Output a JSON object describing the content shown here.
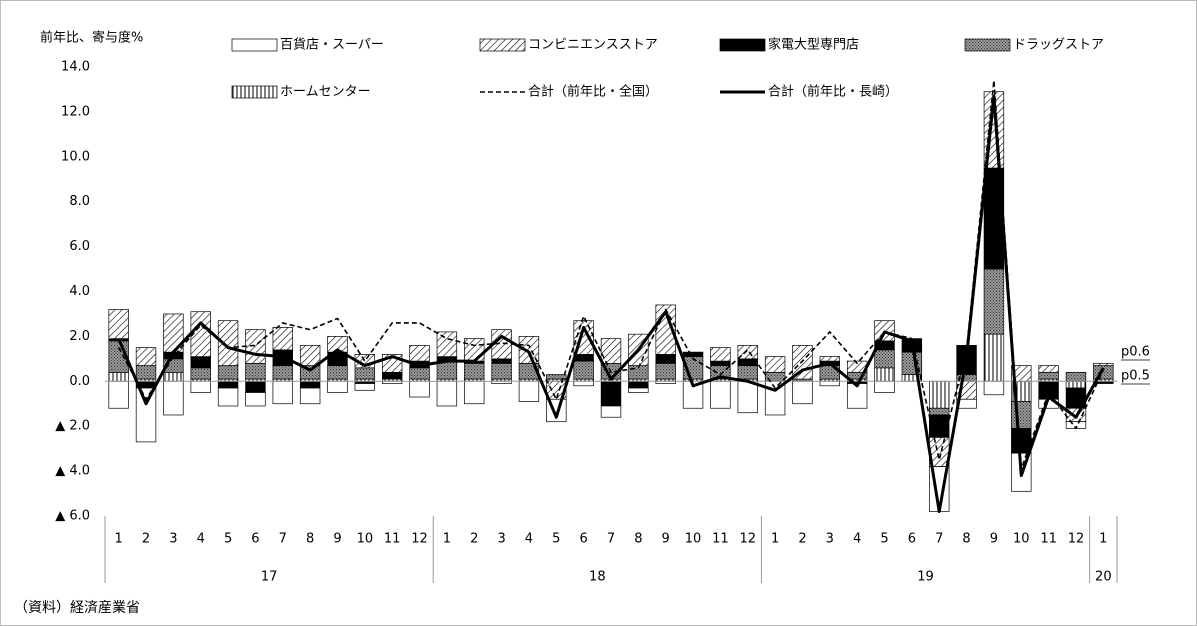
{
  "chart_data": {
    "type": "bar",
    "stacked": true,
    "y_label": "前年比、寄与度%",
    "categories": [
      "1",
      "2",
      "3",
      "4",
      "5",
      "6",
      "7",
      "8",
      "9",
      "10",
      "11",
      "12",
      "1",
      "2",
      "3",
      "4",
      "5",
      "6",
      "7",
      "8",
      "9",
      "10",
      "11",
      "12",
      "1",
      "2",
      "3",
      "4",
      "5",
      "6",
      "7",
      "8",
      "9",
      "10",
      "11",
      "12",
      "1"
    ],
    "years": [
      "17",
      "18",
      "19",
      "20"
    ],
    "ylim": [
      -6,
      14
    ],
    "yticks": [
      {
        "value": -6,
        "label": "▲ 6.0"
      },
      {
        "value": -4,
        "label": "▲ 4.0"
      },
      {
        "value": -2,
        "label": "▲ 2.0"
      },
      {
        "value": 0,
        "label": "0.0"
      },
      {
        "value": 2,
        "label": "2.0"
      },
      {
        "value": 4,
        "label": "4.0"
      },
      {
        "value": 6,
        "label": "6.0"
      },
      {
        "value": 8,
        "label": "8.0"
      },
      {
        "value": 10,
        "label": "10.0"
      },
      {
        "value": 12,
        "label": "12.0"
      },
      {
        "value": 14,
        "label": "14.0"
      }
    ],
    "series": [
      {
        "name": "百貨店・スーパー",
        "color": "#ffffff",
        "pattern": "none",
        "values": [
          -1.2,
          -2.4,
          -1.5,
          -0.5,
          -0.8,
          -0.6,
          -1.0,
          -0.7,
          -0.5,
          -0.3,
          -0.1,
          -0.7,
          -1.1,
          -1.0,
          -0.1,
          -0.9,
          -1.0,
          -0.2,
          -0.5,
          -0.2,
          -0.1,
          -1.2,
          -1.2,
          -1.4,
          -1.5,
          -1.0,
          -0.2,
          -1.1,
          -0.5,
          0.0,
          -2.0,
          -0.4,
          -0.6,
          -1.7,
          -0.4,
          -0.3,
          0.0
        ]
      },
      {
        "name": "コンビニエンスストア",
        "color": "#000000",
        "pattern": "diagonal",
        "values": [
          1.3,
          0.8,
          1.7,
          2.0,
          2.0,
          1.5,
          1.0,
          0.9,
          0.7,
          0.6,
          0.8,
          0.7,
          1.1,
          1.0,
          1.3,
          1.2,
          -0.8,
          1.5,
          1.1,
          1.4,
          2.2,
          0.0,
          0.6,
          0.6,
          0.7,
          1.5,
          0.2,
          0.5,
          0.9,
          0.0,
          -1.3,
          -0.8,
          3.4,
          0.7,
          0.3,
          -0.6,
          0.1
        ]
      },
      {
        "name": "家電大型専門店",
        "color": "#000000",
        "pattern": "solid",
        "values": [
          0.1,
          -0.3,
          0.3,
          0.5,
          -0.3,
          -0.5,
          0.7,
          -0.3,
          0.6,
          -0.1,
          0.3,
          0.3,
          0.2,
          0.1,
          0.2,
          0.0,
          0.0,
          0.3,
          -1.1,
          -0.3,
          0.4,
          0.2,
          0.2,
          0.3,
          0.0,
          0.0,
          0.2,
          -0.1,
          0.4,
          0.6,
          -1.0,
          1.3,
          4.5,
          -1.1,
          -0.8,
          -0.9,
          -0.1
        ]
      },
      {
        "name": "ドラッグストア",
        "color": "#808080",
        "pattern": "dots",
        "values": [
          1.4,
          0.6,
          0.6,
          0.5,
          0.6,
          0.7,
          0.6,
          0.6,
          0.6,
          0.5,
          0.0,
          0.5,
          0.8,
          0.7,
          0.7,
          0.7,
          0.2,
          0.8,
          0.7,
          0.6,
          0.7,
          1.0,
          0.6,
          0.6,
          0.4,
          0.1,
          0.6,
          0.3,
          0.8,
          1.0,
          -0.3,
          0.3,
          2.9,
          -1.2,
          0.3,
          0.4,
          0.6
        ]
      },
      {
        "name": "ホームセンター",
        "color": "#000000",
        "pattern": "vertical",
        "values": [
          0.4,
          0.1,
          0.4,
          0.1,
          0.1,
          0.1,
          0.1,
          0.1,
          0.1,
          0.1,
          0.1,
          0.1,
          0.1,
          0.1,
          0.1,
          0.1,
          0.1,
          0.1,
          0.1,
          0.1,
          0.1,
          0.1,
          0.1,
          0.1,
          0.0,
          0.0,
          0.1,
          0.1,
          0.6,
          0.3,
          -1.2,
          0.0,
          2.1,
          -0.9,
          0.1,
          -0.3,
          0.1
        ]
      },
      {
        "name": "合計（前年比・全国）",
        "type": "line",
        "style": "dashed",
        "color": "#000000",
        "values": [
          1.5,
          -0.8,
          1.1,
          2.5,
          1.5,
          1.6,
          2.6,
          2.3,
          2.8,
          0.9,
          2.6,
          2.6,
          1.9,
          1.6,
          1.7,
          1.6,
          -0.8,
          2.9,
          0.4,
          0.6,
          3.2,
          1.0,
          0.3,
          1.4,
          -0.3,
          0.9,
          2.2,
          0.8,
          2.2,
          1.9,
          -3.5,
          1.4,
          13.4,
          -3.9,
          -0.5,
          -2.1,
          0.5
        ]
      },
      {
        "name": "合計（前年比・長崎）",
        "type": "line",
        "style": "solid",
        "color": "#000000",
        "values": [
          1.9,
          -1.0,
          1.3,
          2.6,
          1.5,
          1.2,
          1.1,
          0.5,
          1.4,
          0.7,
          1.1,
          0.7,
          0.9,
          0.9,
          2.0,
          1.3,
          -1.6,
          2.4,
          0.1,
          1.4,
          3.1,
          -0.2,
          0.2,
          0.0,
          -0.4,
          0.5,
          0.8,
          -0.2,
          2.2,
          1.8,
          -5.8,
          1.1,
          12.7,
          -4.2,
          -0.7,
          -1.6,
          0.6
        ]
      }
    ],
    "annotations": [
      "p0.6",
      "p0.5"
    ]
  },
  "source": "（資料）経済産業省"
}
